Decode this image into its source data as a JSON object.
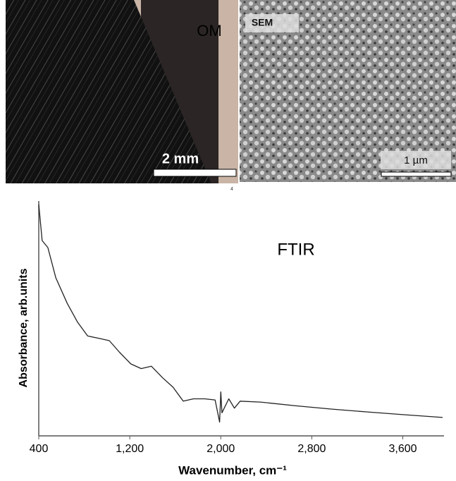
{
  "panels": {
    "om": {
      "label": "OM",
      "scale": "2 mm"
    },
    "sem": {
      "label": "SEM",
      "scale": "1 µm"
    },
    "page_number": "4"
  },
  "chart_data": {
    "type": "line",
    "annotation": "FTIR",
    "x_label": "Wavenumber, cm⁻¹",
    "y_label": "Absorbance, arb.units",
    "x": [
      400,
      430,
      480,
      550,
      650,
      740,
      830,
      930,
      1020,
      1110,
      1210,
      1300,
      1390,
      1490,
      1580,
      1670,
      1760,
      1860,
      1950,
      1990,
      2000,
      2010,
      2070,
      2120,
      2170,
      2350,
      2660,
      2970,
      3280,
      3600,
      3950
    ],
    "series": [
      {
        "name": "FTIR",
        "color": "#222222",
        "values": [
          98.5,
          83,
          80,
          67,
          56,
          48,
          42,
          41,
          40,
          35,
          30,
          28,
          29,
          24,
          20,
          14,
          15,
          15,
          14.5,
          5,
          18,
          9,
          15,
          11,
          14,
          13.6,
          12,
          10.6,
          9.4,
          8.2,
          7
        ]
      }
    ],
    "xlim": [
      400,
      3950
    ],
    "ylim": [
      0,
      100
    ],
    "xticks": [
      400,
      {
        "value": 1200,
        "label": "1,200"
      },
      {
        "value": 2000,
        "label": "2,000"
      },
      {
        "value": 2800,
        "label": "2,800"
      },
      {
        "value": 3600,
        "label": "3,600"
      }
    ]
  }
}
